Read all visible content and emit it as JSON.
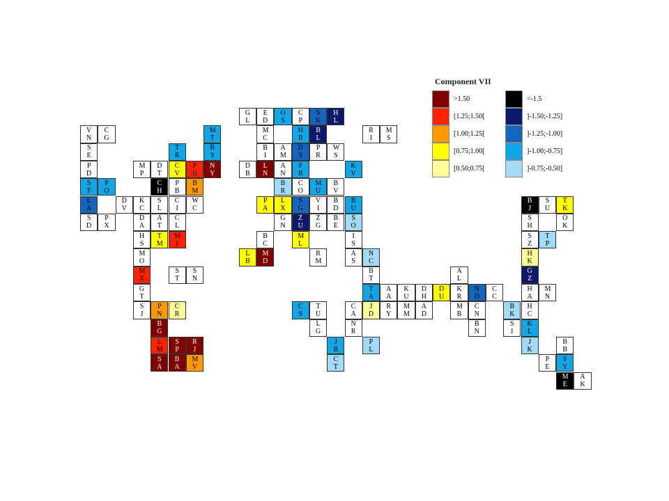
{
  "legend": {
    "title": "Component VII",
    "items": [
      {
        "label": ">1.50",
        "color": "#800000"
      },
      {
        "label": "[1.25;1.50[",
        "color": "#ff2200"
      },
      {
        "label": "[1.00;1.25[",
        "color": "#ff9900"
      },
      {
        "label": "[0.75;1.00[",
        "color": "#ffff00"
      },
      {
        "label": "[0.50;0.75[",
        "color": "#ffff99"
      },
      {
        "label": "<-1.5",
        "color": "#000000"
      },
      {
        "label": "]-1.50;-1.25]",
        "color": "#0d1a6b"
      },
      {
        "label": "]-1.25;-1.00]",
        "color": "#1565c0"
      },
      {
        "label": "]-1.00;-0.75]",
        "color": "#12a6e6"
      },
      {
        "label": "]-0.75;-0.50]",
        "color": "#a3daf7"
      }
    ]
  },
  "grid": {
    "rows": [
      [
        null,
        null,
        null,
        null,
        null,
        null,
        null,
        null,
        null,
        {
          "code": "GL",
          "color": "#fff"
        },
        {
          "code": "ED",
          "color": "#fff"
        },
        {
          "code": "OS",
          "color": "#12a6e6"
        },
        {
          "code": "CP",
          "color": "#fff"
        },
        {
          "code": "SK",
          "color": "#1565c0"
        },
        {
          "code": "HL",
          "color": "#0d1a6b"
        },
        null,
        null,
        null,
        null,
        null,
        null,
        null,
        null,
        null,
        null,
        null,
        null,
        null,
        null
      ],
      [
        {
          "code": "VN",
          "color": "#fff"
        },
        {
          "code": "CG",
          "color": "#fff"
        },
        null,
        null,
        null,
        null,
        null,
        {
          "code": "MT",
          "color": "#12a6e6"
        },
        null,
        null,
        {
          "code": "MC",
          "color": "#fff"
        },
        null,
        {
          "code": "HB",
          "color": "#12a6e6"
        },
        {
          "code": "BL",
          "color": "#0d1a6b"
        },
        null,
        null,
        {
          "code": "RI",
          "color": "#fff"
        },
        {
          "code": "MS",
          "color": "#fff"
        },
        null,
        null,
        null,
        null,
        null,
        null,
        null,
        null,
        null,
        null,
        null
      ],
      [
        {
          "code": "SE",
          "color": "#fff"
        },
        null,
        null,
        null,
        null,
        {
          "code": "TR",
          "color": "#12a6e6"
        },
        null,
        {
          "code": "BS",
          "color": "#12a6e6"
        },
        null,
        null,
        {
          "code": "BI",
          "color": "#fff"
        },
        {
          "code": "AM",
          "color": "#fff"
        },
        {
          "code": "DS",
          "color": "#1565c0"
        },
        {
          "code": "PR",
          "color": "#fff"
        },
        {
          "code": "WS",
          "color": "#fff"
        },
        null,
        null,
        null,
        null,
        null,
        null,
        null,
        null,
        null,
        null,
        null,
        null,
        null,
        null
      ],
      [
        {
          "code": "PD",
          "color": "#fff"
        },
        null,
        null,
        {
          "code": "MP",
          "color": "#fff"
        },
        {
          "code": "DT",
          "color": "#fff"
        },
        {
          "code": "CV",
          "color": "#ffff00"
        },
        {
          "code": "PH",
          "color": "#ff2200"
        },
        {
          "code": "NY",
          "color": "#800000"
        },
        null,
        {
          "code": "DB",
          "color": "#fff"
        },
        {
          "code": "LN",
          "color": "#800000"
        },
        {
          "code": "AN",
          "color": "#fff"
        },
        {
          "code": "FR",
          "color": "#12a6e6"
        },
        null,
        null,
        {
          "code": "KV",
          "color": "#12a6e6"
        },
        null,
        null,
        null,
        null,
        null,
        null,
        null,
        null,
        null,
        null,
        null,
        null,
        null
      ],
      [
        {
          "code": "SF",
          "color": "#12a6e6"
        },
        {
          "code": "PO",
          "color": "#12a6e6"
        },
        null,
        null,
        {
          "code": "CH",
          "color": "#000000"
        },
        {
          "code": "PB",
          "color": "#fff"
        },
        {
          "code": "BM",
          "color": "#ff9900"
        },
        null,
        null,
        null,
        null,
        {
          "code": "BR",
          "color": "#a3daf7"
        },
        {
          "code": "CO",
          "color": "#fff"
        },
        {
          "code": "MU",
          "color": "#12a6e6"
        },
        {
          "code": "BV",
          "color": "#fff"
        },
        null,
        null,
        null,
        null,
        null,
        null,
        null,
        null,
        null,
        null,
        null,
        null,
        null,
        null
      ],
      [
        {
          "code": "LA",
          "color": "#1565c0"
        },
        null,
        {
          "code": "DV",
          "color": "#fff"
        },
        {
          "code": "KC",
          "color": "#fff"
        },
        {
          "code": "SL",
          "color": "#fff"
        },
        {
          "code": "CI",
          "color": "#fff"
        },
        {
          "code": "WC",
          "color": "#fff"
        },
        null,
        null,
        null,
        {
          "code": "PA",
          "color": "#ffff00"
        },
        {
          "code": "LX",
          "color": "#ffff00"
        },
        {
          "code": "SG",
          "color": "#1565c0"
        },
        {
          "code": "VI",
          "color": "#fff"
        },
        {
          "code": "BD",
          "color": "#fff"
        },
        {
          "code": "BU",
          "color": "#12a6e6"
        },
        null,
        null,
        null,
        null,
        null,
        null,
        null,
        null,
        null,
        {
          "code": "BJ",
          "color": "#000000"
        },
        {
          "code": "SU",
          "color": "#fff"
        },
        {
          "code": "TK",
          "color": "#ffff00"
        },
        null
      ],
      [
        {
          "code": "SD",
          "color": "#fff"
        },
        {
          "code": "PX",
          "color": "#fff"
        },
        null,
        {
          "code": "DA",
          "color": "#fff"
        },
        {
          "code": "AT",
          "color": "#fff"
        },
        {
          "code": "CL",
          "color": "#fff"
        },
        null,
        null,
        null,
        null,
        null,
        {
          "code": "GN",
          "color": "#fff"
        },
        {
          "code": "ZU",
          "color": "#0d1a6b"
        },
        {
          "code": "ZG",
          "color": "#fff"
        },
        {
          "code": "BE",
          "color": "#fff"
        },
        {
          "code": "SO",
          "color": "#a3daf7"
        },
        null,
        null,
        null,
        null,
        null,
        null,
        null,
        null,
        null,
        {
          "code": "SH",
          "color": "#fff"
        },
        null,
        {
          "code": "OK",
          "color": "#fff"
        },
        null
      ],
      [
        null,
        null,
        null,
        {
          "code": "HS",
          "color": "#fff"
        },
        {
          "code": "TM",
          "color": "#ffff00"
        },
        {
          "code": "MI",
          "color": "#ff2200"
        },
        null,
        null,
        null,
        null,
        {
          "code": "BC",
          "color": "#fff"
        },
        null,
        {
          "code": "ML",
          "color": "#ffff00"
        },
        null,
        null,
        {
          "code": "IS",
          "color": "#fff"
        },
        null,
        null,
        null,
        null,
        null,
        null,
        null,
        null,
        null,
        {
          "code": "SZ",
          "color": "#fff"
        },
        {
          "code": "TP",
          "color": "#a3daf7"
        },
        null,
        null
      ],
      [
        null,
        null,
        null,
        {
          "code": "MO",
          "color": "#fff"
        },
        null,
        null,
        null,
        null,
        null,
        {
          "code": "LB",
          "color": "#ffff00"
        },
        {
          "code": "MD",
          "color": "#800000"
        },
        null,
        null,
        {
          "code": "RM",
          "color": "#fff"
        },
        null,
        {
          "code": "AS",
          "color": "#fff"
        },
        {
          "code": "NC",
          "color": "#a3daf7"
        },
        null,
        null,
        null,
        null,
        null,
        null,
        null,
        null,
        {
          "code": "HK",
          "color": "#ffff99"
        },
        null,
        null,
        null
      ],
      [
        null,
        null,
        null,
        {
          "code": "MX",
          "color": "#ff2200"
        },
        null,
        {
          "code": "ST",
          "color": "#fff"
        },
        {
          "code": "SN",
          "color": "#fff"
        },
        null,
        null,
        null,
        null,
        null,
        null,
        null,
        null,
        null,
        {
          "code": "BT",
          "color": "#fff"
        },
        null,
        null,
        null,
        null,
        {
          "code": "AL",
          "color": "#fff"
        },
        null,
        null,
        null,
        {
          "code": "GZ",
          "color": "#0d1a6b"
        },
        null,
        null,
        null
      ],
      [
        null,
        null,
        null,
        {
          "code": "GT",
          "color": "#fff"
        },
        null,
        null,
        null,
        null,
        null,
        null,
        null,
        null,
        null,
        null,
        null,
        null,
        {
          "code": "TA",
          "color": "#12a6e6"
        },
        {
          "code": "AA",
          "color": "#fff"
        },
        {
          "code": "KU",
          "color": "#fff"
        },
        {
          "code": "DH",
          "color": "#fff"
        },
        {
          "code": "DU",
          "color": "#ffff00"
        },
        {
          "code": "KR",
          "color": "#fff"
        },
        {
          "code": "ND",
          "color": "#1565c0"
        },
        {
          "code": "CC",
          "color": "#fff"
        },
        null,
        {
          "code": "HA",
          "color": "#fff"
        },
        {
          "code": "MN",
          "color": "#fff"
        },
        null,
        null
      ],
      [
        null,
        null,
        null,
        {
          "code": "SJ",
          "color": "#fff"
        },
        {
          "code": "PN",
          "color": "#ff9900"
        },
        {
          "code": "CR",
          "color": "#ffff99"
        },
        null,
        null,
        null,
        null,
        null,
        null,
        {
          "code": "CS",
          "color": "#12a6e6"
        },
        {
          "code": "TU",
          "color": "#fff"
        },
        null,
        {
          "code": "CA",
          "color": "#fff"
        },
        {
          "code": "JD",
          "color": "#ffff99"
        },
        {
          "code": "RY",
          "color": "#fff"
        },
        {
          "code": "MM",
          "color": "#fff"
        },
        {
          "code": "AD",
          "color": "#fff"
        },
        null,
        {
          "code": "MB",
          "color": "#fff"
        },
        {
          "code": "CN",
          "color": "#fff"
        },
        null,
        {
          "code": "BK",
          "color": "#a3daf7"
        },
        {
          "code": "HC",
          "color": "#fff"
        },
        null,
        null,
        null
      ],
      [
        null,
        null,
        null,
        null,
        {
          "code": "BG",
          "color": "#800000"
        },
        null,
        null,
        null,
        null,
        null,
        null,
        null,
        null,
        {
          "code": "LG",
          "color": "#fff"
        },
        null,
        {
          "code": "NR",
          "color": "#fff"
        },
        null,
        null,
        null,
        null,
        null,
        null,
        {
          "code": "BN",
          "color": "#fff"
        },
        null,
        {
          "code": "SI",
          "color": "#fff"
        },
        {
          "code": "KL",
          "color": "#12a6e6"
        },
        null,
        null,
        null
      ],
      [
        null,
        null,
        null,
        null,
        {
          "code": "LM",
          "color": "#ff2200"
        },
        {
          "code": "SP",
          "color": "#800000"
        },
        {
          "code": "RJ",
          "color": "#800000"
        },
        null,
        null,
        null,
        null,
        null,
        null,
        null,
        {
          "code": "JB",
          "color": "#12a6e6"
        },
        null,
        {
          "code": "PL",
          "color": "#a3daf7"
        },
        null,
        null,
        null,
        null,
        null,
        null,
        null,
        null,
        {
          "code": "JK",
          "color": "#a3daf7"
        },
        null,
        {
          "code": "BB",
          "color": "#fff"
        },
        null
      ],
      [
        null,
        null,
        null,
        null,
        {
          "code": "SA",
          "color": "#800000"
        },
        {
          "code": "BA",
          "color": "#800000"
        },
        {
          "code": "MV",
          "color": "#ff9900"
        },
        null,
        null,
        null,
        null,
        null,
        null,
        null,
        {
          "code": "CT",
          "color": "#a3daf7"
        },
        null,
        null,
        null,
        null,
        null,
        null,
        null,
        null,
        null,
        null,
        null,
        {
          "code": "PE",
          "color": "#fff"
        },
        {
          "code": "SY",
          "color": "#12a6e6"
        },
        null
      ],
      [
        null,
        null,
        null,
        null,
        null,
        null,
        null,
        null,
        null,
        null,
        null,
        null,
        null,
        null,
        null,
        null,
        null,
        null,
        null,
        null,
        null,
        null,
        null,
        null,
        null,
        null,
        null,
        {
          "code": "ME",
          "color": "#000000"
        },
        {
          "code": "AK",
          "color": "#fff"
        }
      ]
    ]
  }
}
